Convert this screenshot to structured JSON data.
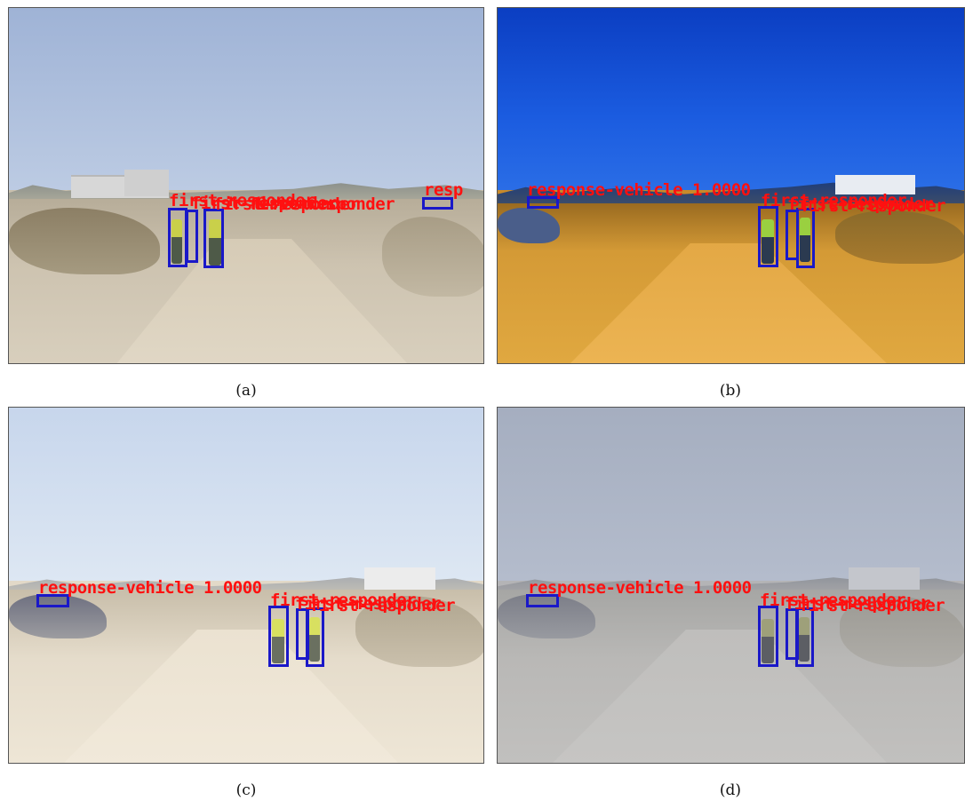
{
  "figure": {
    "panels": [
      {
        "id": "a",
        "caption": "(a)"
      },
      {
        "id": "b",
        "caption": "(b)"
      },
      {
        "id": "c",
        "caption": "(c)"
      },
      {
        "id": "d",
        "caption": "(d)"
      }
    ],
    "labels": {
      "vehicle": "response-vehicle 1.0000",
      "responder": "first-responder",
      "resp_fragment": "resp"
    },
    "colors": {
      "bbox": "#1a18c8",
      "label": "#ff1010"
    }
  }
}
